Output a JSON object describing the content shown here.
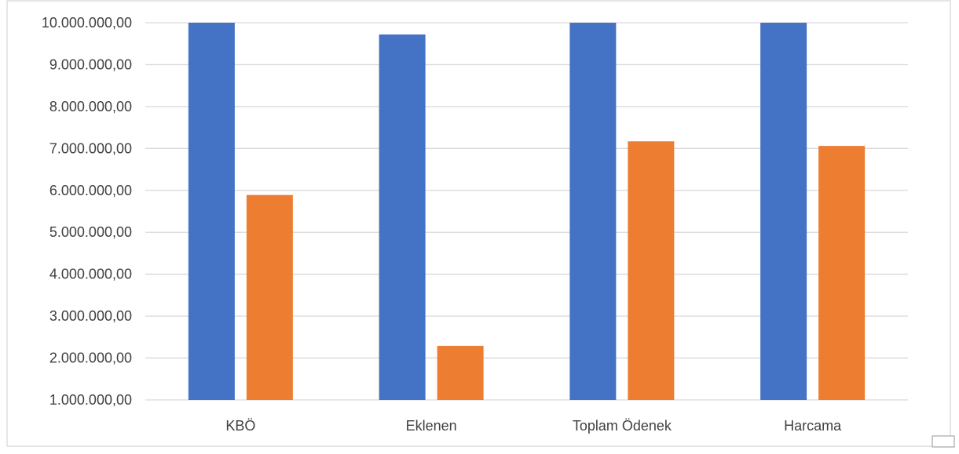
{
  "chart_data": {
    "type": "bar",
    "title": "",
    "xlabel": "",
    "ylabel": "",
    "categories": [
      "KBÖ",
      "Eklenen",
      "Toplam Ödenek",
      "Harcama"
    ],
    "series": [
      {
        "color": "#4472C4",
        "values": [
          10000000,
          9720000,
          10000000,
          10000000
        ]
      },
      {
        "color": "#ED7D31",
        "values": [
          5890000,
          2290000,
          7170000,
          7060000
        ]
      }
    ],
    "ylim": [
      1000000,
      10000000
    ],
    "yticks": [
      1000000,
      2000000,
      3000000,
      4000000,
      5000000,
      6000000,
      7000000,
      8000000,
      9000000,
      10000000
    ],
    "ytick_labels": [
      "1.000.000,00",
      "2.000.000,00",
      "3.000.000,00",
      "4.000.000,00",
      "5.000.000,00",
      "6.000.000,00",
      "7.000.000,00",
      "8.000.000,00",
      "9.000.000,00",
      "10.000.000,00"
    ],
    "grid": true,
    "legend": "none"
  }
}
